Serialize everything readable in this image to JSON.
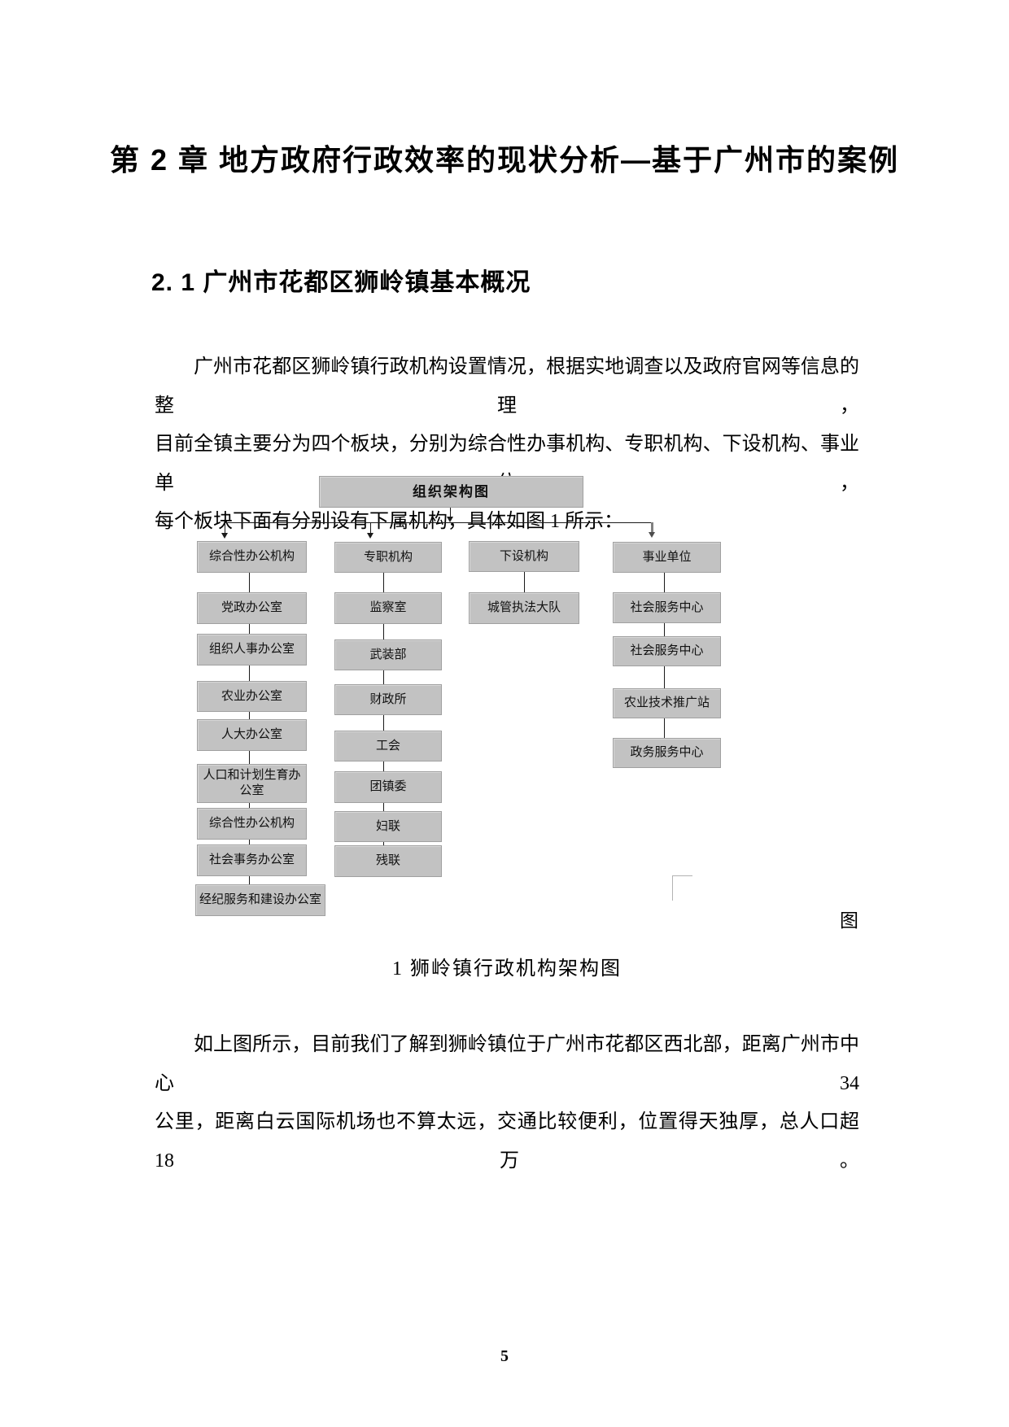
{
  "page": {
    "title": "第 2 章 地方政府行政效率的现状分析—基于广州市的案例",
    "section_heading": "2. 1 广州市花都区狮岭镇基本概况",
    "page_number": "5"
  },
  "paragraph1": {
    "lines": [
      "广州市花都区狮岭镇行政机构设置情况，根据实地调查以及政府官网等信息的整理，",
      "目前全镇主要分为四个板块，分别为综合性办事机构、专职机构、下设机构、事业单位，",
      "每个板块下面有分别设有下属机构，具体如图 1 所示："
    ]
  },
  "figure": {
    "overflow_char": "图",
    "caption": "1 狮岭镇行政机构架构图"
  },
  "paragraph2": {
    "lines": [
      "如上图所示，目前我们了解到狮岭镇位于广州市花都区西北部，距离广州市中心 34",
      "公里，距离白云国际机场也不算太远，交通比较便利，位置得天独厚，总人口超 18 万。"
    ]
  },
  "chart": {
    "type": "org-chart",
    "root": "组织架构图",
    "columns": [
      {
        "header": "综合性办公机构",
        "children": [
          "党政办公室",
          "组织人事办公室",
          "农业办公室",
          "人大办公室",
          "人口和计划生育办公室",
          "综合性办公机构",
          "社会事务办公室",
          "经纪服务和建设办公室"
        ]
      },
      {
        "header": "专职机构",
        "children": [
          "监察室",
          "武装部",
          "财政所",
          "工会",
          "团镇委",
          "妇联",
          "残联"
        ]
      },
      {
        "header": "下设机构",
        "children": [
          "城管执法大队"
        ]
      },
      {
        "header": "事业单位",
        "children": [
          "社会服务中心",
          "社会服务中心",
          "农业技术推广站",
          "政务服务中心"
        ]
      }
    ],
    "colors": {
      "box_fill": "#c2c2c2",
      "box_border": "#a0a0a0",
      "line": "#1a1a1a"
    }
  }
}
